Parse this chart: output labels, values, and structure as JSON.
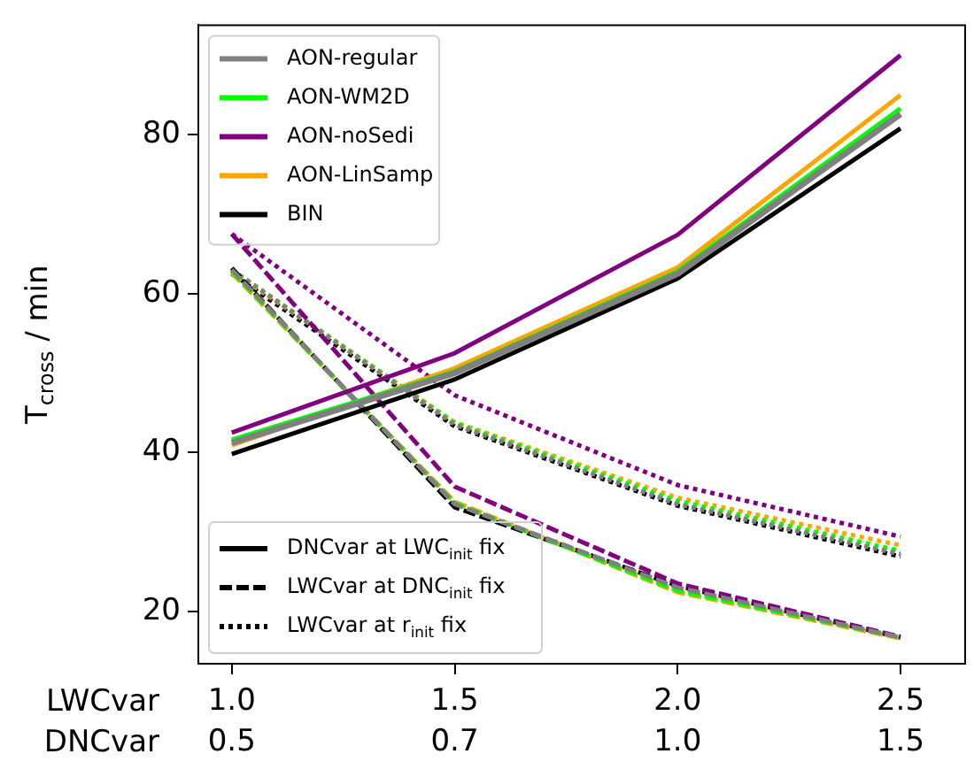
{
  "chart_data": {
    "type": "line",
    "ylabel": "T$_{cross}$ / min",
    "categories": [
      "1.0\n0.5",
      "1.5\n0.7",
      "2.0\n1.0",
      "2.5\n1.5"
    ],
    "ylim": [
      13.4,
      93.8
    ],
    "yticks": [
      20,
      40,
      60,
      80
    ],
    "grid": false,
    "legend": "top left",
    "marker": "none",
    "annotations": [
      "LWCvar",
      "DNCvar",
      "DNCvar at LWC$_{init}$ fix",
      "LWCvar at DNC$_{init}$ fix",
      "LWCvar at r$_{init}$ fix"
    ],
    "series": [
      {
        "name": "AON-regular",
        "color": "#808080",
        "line_style": "solid",
        "values": [
          41.2,
          50,
          62.5,
          82.6
        ]
      },
      {
        "name": "AON-WM2D",
        "color": "#00ff00",
        "line_style": "solid",
        "values": [
          41.6,
          50.2,
          62.8,
          83.3
        ]
      },
      {
        "name": "AON-noSedi",
        "color": "#800080",
        "line_style": "solid",
        "values": [
          42.5,
          52.5,
          67.4,
          90
        ]
      },
      {
        "name": "AON-LinSamp",
        "color": "#ffa500",
        "line_style": "solid",
        "values": [
          40.9,
          50.6,
          63.3,
          85
        ]
      },
      {
        "name": "BIN",
        "color": "#000000",
        "line_style": "solid",
        "values": [
          39.8,
          49.2,
          61.9,
          80.8
        ]
      },
      {
        "color": "#808080",
        "line_style": "dashed",
        "values": [
          63,
          33.5,
          23,
          16.7
        ]
      },
      {
        "color": "#00ff00",
        "line_style": "dashed",
        "values": [
          62.8,
          33.6,
          22.6,
          16.7
        ]
      },
      {
        "color": "#800080",
        "line_style": "dashed",
        "values": [
          67.5,
          35.7,
          23.5,
          16.8
        ]
      },
      {
        "color": "#ffa500",
        "line_style": "dashed",
        "values": [
          62.6,
          33.8,
          22.4,
          16.6
        ]
      },
      {
        "color": "#000000",
        "line_style": "dashed",
        "values": [
          63.2,
          33.1,
          23.2,
          16.7
        ]
      },
      {
        "color": "#808080",
        "line_style": "dotted",
        "values": [
          63,
          43.5,
          33.5,
          27.2
        ]
      },
      {
        "color": "#00ff00",
        "line_style": "dotted",
        "values": [
          63,
          43.7,
          33.9,
          27.6
        ]
      },
      {
        "color": "#800080",
        "line_style": "dotted",
        "values": [
          67.5,
          47.2,
          35.9,
          29.4
        ]
      },
      {
        "color": "#ffa500",
        "line_style": "dotted",
        "values": [
          62.8,
          43.8,
          34.3,
          28.3
        ]
      },
      {
        "color": "#000000",
        "line_style": "dotted",
        "values": [
          62.5,
          43.3,
          33.3,
          26.9
        ]
      }
    ]
  }
}
